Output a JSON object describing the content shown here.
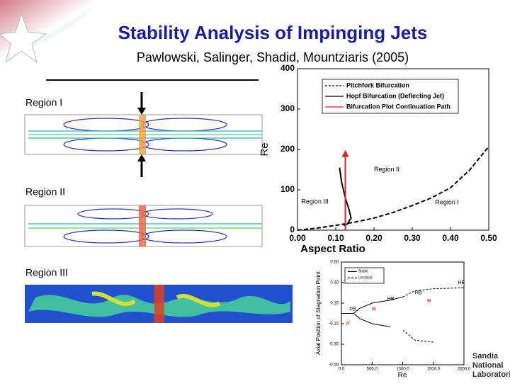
{
  "title": "Stability Analysis of Impinging Jets",
  "subtitle": "Pawlowski, Salinger, Shadid, Mountziaris (2005)",
  "regions": [
    "Region I",
    "Region II",
    "Region III"
  ],
  "logo": [
    "Sandia",
    "National",
    "Laboratories"
  ],
  "chart_data": [
    {
      "type": "line",
      "x_label": "Aspect Ratio",
      "y_label": "Re",
      "xlim": [
        0,
        0.5
      ],
      "ylim": [
        0,
        400
      ],
      "xticks": [
        {
          "value": 0,
          "label": "0.00"
        },
        {
          "value": 0.1,
          "label": "0.10"
        },
        {
          "value": 0.2,
          "label": "0.20"
        },
        {
          "value": 0.3,
          "label": "0.30"
        },
        {
          "value": 0.4,
          "label": "0.40"
        },
        {
          "value": 0.5,
          "label": "0.50"
        }
      ],
      "yticks": [
        0,
        100,
        200,
        300,
        400
      ],
      "legend": "upper-right",
      "series": [
        {
          "name": "Pitchfork Bifurcation",
          "color": "#000000",
          "dash": true,
          "x": [
            0,
            0.05,
            0.1,
            0.15,
            0.2,
            0.25,
            0.3,
            0.35,
            0.4,
            0.45,
            0.5
          ],
          "values": [
            0,
            5,
            12,
            20,
            30,
            44,
            61,
            80,
            105,
            149,
            207
          ]
        },
        {
          "name": "Hopf Bifurcation (Deflecting Jet)",
          "color": "#000000",
          "dash": false,
          "x": [
            0.11,
            0.115,
            0.125,
            0.135,
            0.14,
            0.13,
            0.12
          ],
          "values": [
            155,
            120,
            80,
            50,
            30,
            15,
            12
          ]
        },
        {
          "name": "Bifurcation Plot Continuation Path",
          "color": "#e02020",
          "dash": false,
          "arrow": true,
          "x": [
            0.125,
            0.125
          ],
          "values": [
            0,
            190
          ]
        }
      ],
      "annotations": [
        {
          "text": "Region II"
        },
        {
          "text": "Region III"
        },
        {
          "text": "Region I"
        }
      ]
    },
    {
      "type": "line",
      "x_label": "Re",
      "y_label": "Axial Position of Stagnation Point",
      "xlim": [
        0,
        2000
      ],
      "ylim": [
        -0.5,
        0.5
      ],
      "xticks": [
        {
          "value": 0,
          "label": "0.0"
        },
        {
          "value": 500,
          "label": "500.0"
        },
        {
          "value": 1000,
          "label": "1000.0"
        },
        {
          "value": 1500,
          "label": "1500.0"
        },
        {
          "value": 2000,
          "label": "2000.0"
        }
      ],
      "yticks": [
        {
          "value": 0.5,
          "label": "0.50"
        },
        {
          "value": 0.3,
          "label": "0.30"
        },
        {
          "value": 0.1,
          "label": "0.10"
        },
        {
          "value": -0.1,
          "label": "-0.10"
        },
        {
          "value": -0.3,
          "label": "-0.30"
        },
        {
          "value": -0.5,
          "label": "-0.50"
        }
      ],
      "legend": "upper-left",
      "series": [
        {
          "name": "Stable",
          "color": "#000000",
          "dash": false,
          "x": [
            0,
            200,
            300,
            500,
            800,
            1000,
            1000,
            800,
            500,
            300,
            200
          ],
          "values": [
            0,
            0,
            0.05,
            0.1,
            0.13,
            0.16,
            null,
            -0.13,
            -0.1,
            -0.05,
            0
          ]
        },
        {
          "name": "Unstable",
          "color": "#000000",
          "dash": true,
          "x": [
            1000,
            1200,
            1500,
            2000,
            2000,
            1500,
            1200,
            1000
          ],
          "values": [
            0.16,
            0.22,
            0.24,
            0.25,
            null,
            -0.28,
            -0.26,
            -0.16
          ]
        }
      ],
      "annotations": [
        {
          "text": "PB",
          "color": "#000000"
        },
        {
          "text": "HB",
          "color": "#000000"
        },
        {
          "text": "HB",
          "color": "#000000"
        },
        {
          "text": "HB",
          "color": "#000000"
        },
        {
          "text": "P",
          "color": "#e06010"
        },
        {
          "text": "H",
          "color": "#d02020"
        },
        {
          "text": "H",
          "color": "#d02020"
        }
      ]
    }
  ]
}
